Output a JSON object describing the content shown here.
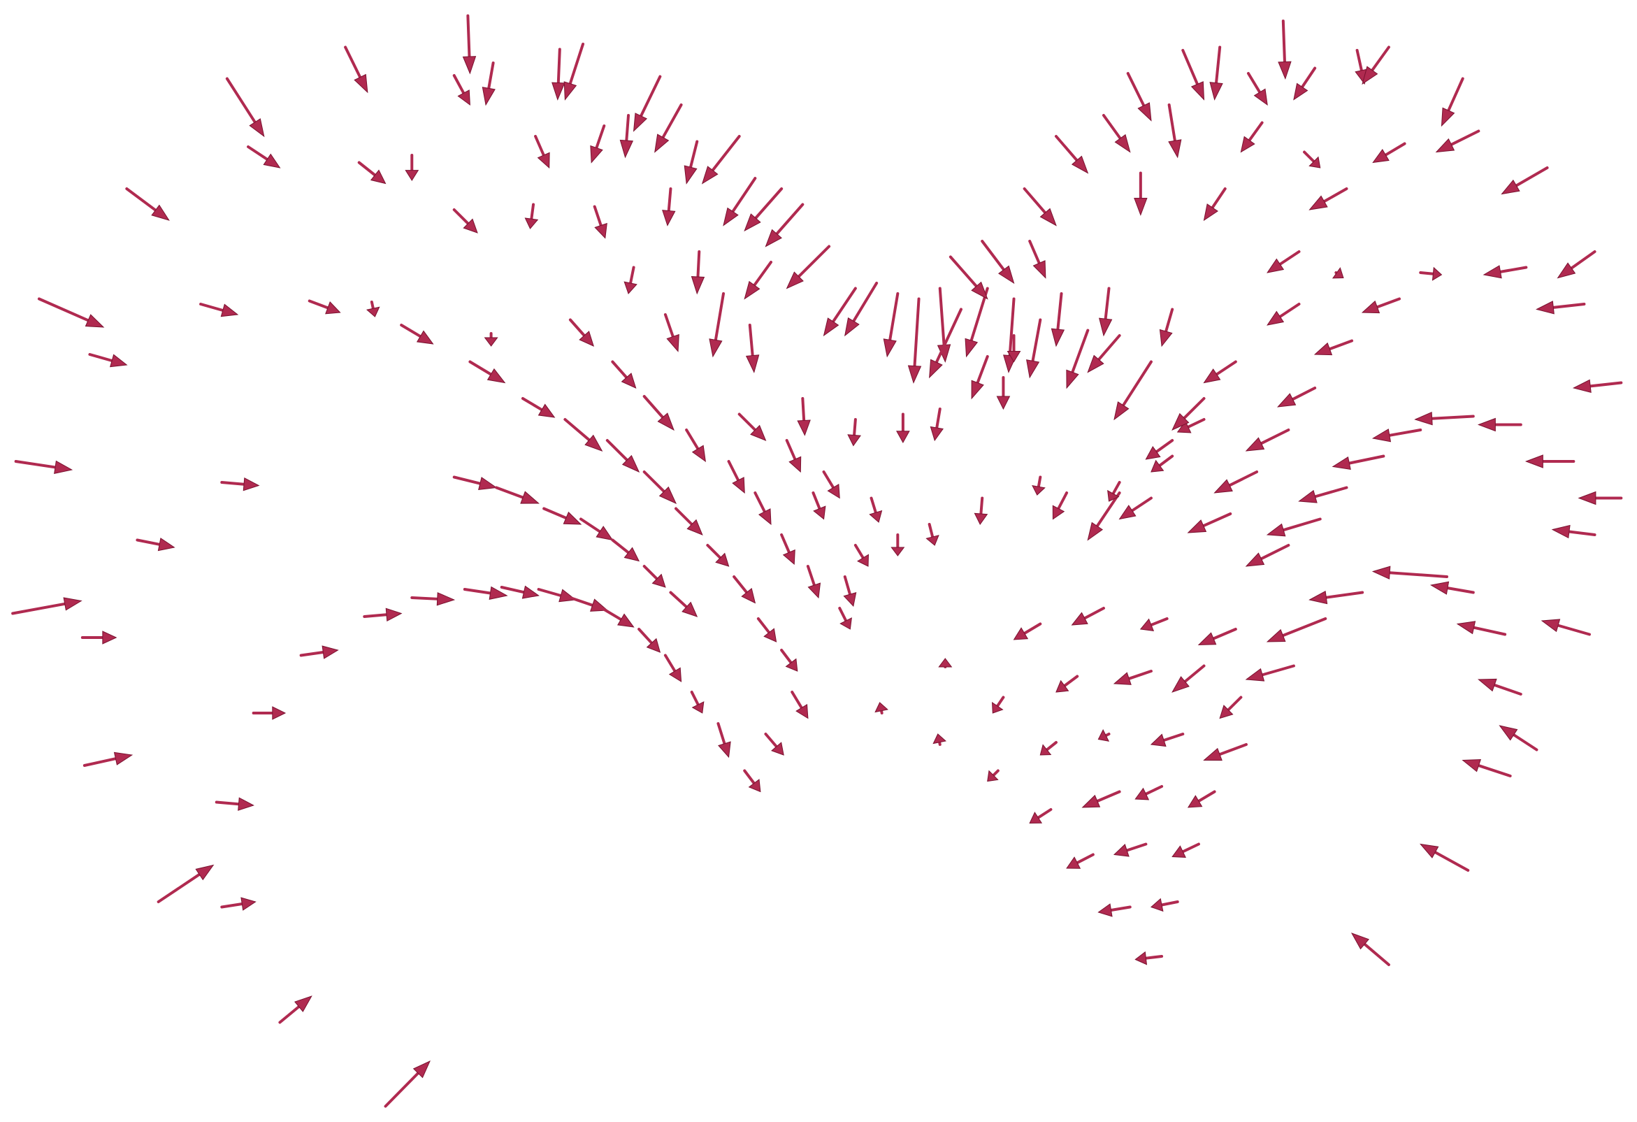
{
  "chart_data": {
    "type": "quiver",
    "color": "#b02a50",
    "xlim": [
      0,
      1550
    ],
    "ylim": [
      0,
      1070
    ],
    "x": [
      215,
      327,
      443,
      530,
      552,
      467,
      430,
      625,
      645,
      235,
      340,
      390,
      507,
      572,
      595,
      120,
      430,
      505,
      563,
      635,
      660,
      700,
      715,
      740,
      760,
      37,
      190,
      293,
      352,
      380,
      465,
      540,
      600,
      662,
      630,
      685,
      710,
      730,
      785,
      810,
      830,
      850,
      870,
      890,
      910,
      935,
      960,
      985,
      1005,
      1030,
      1050,
      900,
      930,
      975,
      970,
      1000,
      1045,
      1080,
      1068,
      1107,
      1120,
      1155,
      1182,
      1215,
      1245,
      1285,
      1315,
      1195,
      1235,
      1330,
      1385,
      1400,
      1465,
      1275,
      1160,
      1230,
      1265,
      1345,
      1445,
      1510,
      1325,
      1500,
      1230,
      1110,
      1170,
      1280,
      1535,
      1245,
      1395,
      1440,
      1490,
      1345,
      1310,
      1220,
      1140,
      1110,
      1535,
      1510,
      1275,
      1190,
      1250,
      1165,
      1090,
      1220,
      1370,
      1395,
      1290,
      1505,
      1425,
      1255,
      1170,
      1105,
      1045,
      985,
      1440,
      1225,
      1140,
      1090,
      1020,
      950,
      1455,
      1430,
      1175,
      1120,
      1050,
      1000,
      1180,
      1150,
      1100,
      1060,
      995,
      1390,
      1135,
      1085,
      1035,
      1115,
      1070,
      1100,
      1315,
      945,
      890,
      835,
      895,
      12,
      15,
      85,
      130,
      78,
      210,
      345,
      285,
      390,
      440,
      475,
      510,
      540,
      570,
      605,
      630,
      655,
      680,
      705,
      430,
      470,
      515,
      550,
      580,
      610,
      635,
      495,
      535,
      575,
      610,
      640,
      670,
      695,
      718,
      740,
      750,
      725,
      445,
      580,
      610,
      650,
      690,
      715,
      740,
      765,
      795,
      800,
      810,
      770,
      700,
      745,
      780,
      825,
      850,
      880,
      930,
      985,
      1010,
      1060,
      1060,
      1110,
      1140,
      1090,
      1060,
      960,
      950,
      935,
      890,
      855,
      810,
      760,
      150,
      365,
      265,
      210,
      240,
      80,
      205
    ],
    "y": [
      75,
      45,
      15,
      47,
      42,
      60,
      72,
      73,
      100,
      140,
      155,
      148,
      130,
      120,
      110,
      180,
      200,
      195,
      197,
      180,
      135,
      130,
      170,
      180,
      195,
      285,
      290,
      287,
      288,
      310,
      318,
      305,
      255,
      240,
      300,
      280,
      310,
      250,
      235,
      275,
      270,
      280,
      285,
      275,
      295,
      275,
      285,
      305,
      280,
      315,
      275,
      245,
      230,
      230,
      180,
      130,
      110,
      165,
      70,
      100,
      48,
      45,
      70,
      20,
      65,
      48,
      45,
      117,
      145,
      137,
      75,
      125,
      160,
      180,
      180,
      240,
      260,
      260,
      255,
      240,
      285,
      290,
      290,
      295,
      345,
      325,
      365,
      370,
      397,
      405,
      440,
      410,
      435,
      410,
      400,
      435,
      475,
      510,
      465,
      450,
      495,
      490,
      475,
      520,
      550,
      565,
      565,
      605,
      605,
      590,
      600,
      590,
      580,
      595,
      662,
      635,
      635,
      640,
      645,
      665,
      715,
      740,
      665,
      700,
      700,
      708,
      710,
      755,
      750,
      755,
      772,
      830,
      805,
      805,
      815,
      860,
      865,
      912,
      920,
      735,
      710,
      680,
      635,
      585,
      440,
      338,
      515,
      608,
      460,
      588,
      625,
      570,
      562,
      560,
      562,
      570,
      580,
      600,
      625,
      660,
      690,
      735,
      455,
      465,
      485,
      495,
      515,
      540,
      565,
      380,
      400,
      420,
      450,
      485,
      520,
      550,
      590,
      620,
      660,
      700,
      345,
      345,
      378,
      410,
      440,
      470,
      510,
      540,
      580,
      550,
      520,
      470,
      395,
      420,
      450,
      475,
      510,
      500,
      475,
      455,
      470,
      470,
      460,
      420,
      380,
      345,
      320,
      320,
      360,
      340,
      390,
      395,
      400,
      380,
      860,
      1055,
      975,
      865,
      680,
      730,
      765
    ],
    "u": [
      35,
      21,
      2,
      -2,
      -17,
      -7,
      15,
      -25,
      -25,
      30,
      25,
      0,
      13,
      -12,
      -3,
      40,
      22,
      -3,
      10,
      -3,
      -10,
      -35,
      -30,
      -35,
      -35,
      61,
      35,
      29,
      3,
      30,
      0,
      22,
      -5,
      -2,
      12,
      -10,
      4,
      -25,
      -40,
      -30,
      -30,
      -10,
      -5,
      5,
      -30,
      -20,
      -5,
      -10,
      -5,
      -20,
      -5,
      35,
      30,
      15,
      30,
      30,
      25,
      0,
      22,
      8,
      20,
      -5,
      18,
      2,
      -20,
      7,
      -25,
      -20,
      15,
      -30,
      -20,
      -40,
      -43,
      -35,
      -20,
      -30,
      7,
      20,
      -40,
      -35,
      -35,
      -45,
      -30,
      -10,
      -30,
      -35,
      -45,
      -35,
      -55,
      -40,
      -45,
      -45,
      -48,
      -40,
      -25,
      -20,
      -40,
      -40,
      -45,
      -40,
      -50,
      -40,
      -30,
      -40,
      -70,
      -40,
      -50,
      -45,
      -45,
      -55,
      -35,
      -25,
      -30,
      -25,
      -40,
      -45,
      -30,
      -35,
      -20,
      -10,
      -35,
      -45,
      -20,
      -30,
      -10,
      -15,
      -40,
      -25,
      -25,
      -35,
      -20,
      -45,
      -25,
      -30,
      -25,
      -25,
      -30,
      -25,
      -35,
      -10,
      -2,
      -2,
      0,
      65,
      53,
      35,
      35,
      32,
      35,
      35,
      35,
      40,
      40,
      35,
      35,
      35,
      30,
      20,
      15,
      10,
      10,
      15,
      40,
      40,
      35,
      30,
      25,
      20,
      25,
      30,
      35,
      30,
      30,
      25,
      20,
      20,
      17,
      15,
      15,
      17,
      33,
      22,
      28,
      18,
      15,
      15,
      12,
      10,
      10,
      8,
      12,
      10,
      25,
      13,
      15,
      7,
      0,
      5,
      -2,
      -3,
      -13,
      -30,
      -10,
      -25,
      -30,
      -35,
      -30,
      0,
      0,
      -15,
      -5,
      0,
      -2,
      2,
      52,
      42,
      30,
      32,
      30,
      45,
      35
    ],
    "v": [
      55,
      43,
      55,
      48,
      53,
      40,
      28,
      52,
      45,
      20,
      20,
      24,
      30,
      35,
      40,
      30,
      22,
      23,
      30,
      35,
      40,
      45,
      45,
      40,
      40,
      27,
      10,
      11,
      14,
      18,
      12,
      25,
      25,
      40,
      35,
      60,
      45,
      35,
      40,
      45,
      50,
      60,
      80,
      70,
      65,
      65,
      70,
      55,
      50,
      55,
      45,
      40,
      40,
      35,
      35,
      35,
      35,
      40,
      45,
      50,
      47,
      50,
      30,
      55,
      30,
      32,
      35,
      28,
      15,
      18,
      45,
      20,
      25,
      20,
      30,
      20,
      5,
      2,
      7,
      25,
      13,
      5,
      20,
      35,
      20,
      13,
      5,
      18,
      3,
      0,
      0,
      8,
      10,
      20,
      12,
      15,
      0,
      -5,
      13,
      20,
      15,
      18,
      20,
      20,
      -5,
      -7,
      7,
      -13,
      -10,
      22,
      15,
      10,
      16,
      15,
      -14,
      13,
      25,
      12,
      15,
      15,
      -23,
      -15,
      20,
      10,
      5,
      12,
      15,
      15,
      12,
      15,
      13,
      -25,
      12,
      10,
      13,
      5,
      5,
      3,
      -30,
      10,
      -10,
      -10,
      -7,
      -12,
      8,
      10,
      7,
      0,
      3,
      -3,
      -5,
      2,
      6,
      8,
      10,
      12,
      18,
      22,
      25,
      20,
      32,
      20,
      10,
      15,
      15,
      20,
      20,
      20,
      23,
      18,
      30,
      30,
      30,
      25,
      20,
      25,
      22,
      20,
      25,
      20,
      20,
      25,
      32,
      30,
      30,
      30,
      28,
      30,
      20,
      28,
      20,
      25,
      25,
      30,
      25,
      23,
      20,
      20,
      25,
      17,
      25,
      45,
      18,
      18,
      30,
      55,
      35,
      25,
      30,
      40,
      30,
      27,
      25,
      35,
      -35,
      -43,
      -25,
      -5,
      0,
      -10,
      3
    ]
  }
}
